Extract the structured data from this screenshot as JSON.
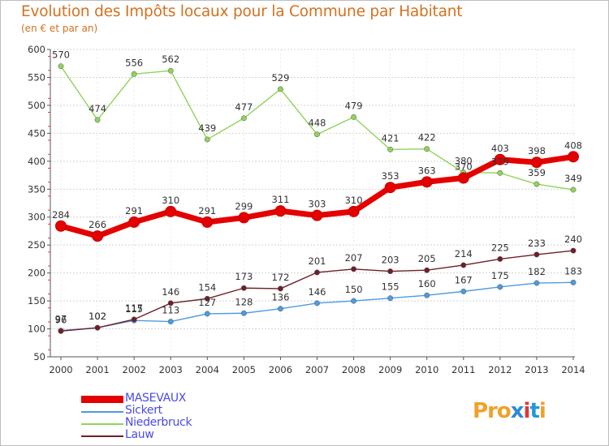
{
  "title": "Evolution des Impôts locaux pour la Commune par Habitant",
  "subtitle": "(en € et par an)",
  "logo": {
    "text": "Proxiti",
    "letters": [
      "P",
      "r",
      "o",
      "x",
      "i",
      "t",
      "i"
    ],
    "letter_colors": [
      "#f2a02a",
      "#f2a02a",
      "#f2a02a",
      "#2c8ad8",
      "#e0373a",
      "#1f9ad6",
      "#f2a02a"
    ]
  },
  "chart_data": {
    "type": "line",
    "title": "Evolution des Impôts locaux pour la Commune par Habitant",
    "ylabel": "(en € et par an)",
    "x": [
      "2000",
      "2001",
      "2002",
      "2003",
      "2004",
      "2005",
      "2006",
      "2007",
      "2008",
      "2009",
      "2010",
      "2011",
      "2012",
      "2013",
      "2014"
    ],
    "ylim": [
      50,
      600
    ],
    "yticks": [
      50,
      100,
      150,
      200,
      250,
      300,
      350,
      400,
      450,
      500,
      550,
      600
    ],
    "grid": "horizontal dashed",
    "legend_position": "bottom-left",
    "series": [
      {
        "name": "MASEVAUX",
        "color": "#e50000",
        "values": [
          284,
          266,
          291,
          310,
          291,
          299,
          311,
          303,
          310,
          353,
          363,
          370,
          403,
          398,
          408
        ],
        "labels": [
          "284",
          "266",
          "291",
          "310",
          "291",
          "299",
          "311",
          "303",
          "310",
          "353",
          "363",
          "370",
          "403",
          "398",
          "408"
        ]
      },
      {
        "name": "Sickert",
        "color": "#4d9be0",
        "values": [
          97,
          102,
          115,
          113,
          127,
          128,
          136,
          146,
          150,
          155,
          160,
          167,
          175,
          182,
          183
        ],
        "labels": [
          "97",
          "102",
          "115",
          "113",
          "127",
          "128",
          "136",
          "146",
          "150",
          "155",
          "160",
          "167",
          "175",
          "182",
          "183"
        ]
      },
      {
        "name": "Niederbruck",
        "color": "#8fd35a",
        "values": [
          570,
          474,
          556,
          562,
          439,
          477,
          529,
          448,
          479,
          421,
          422,
          380,
          379,
          359,
          349
        ],
        "labels": [
          "570",
          "474",
          "556",
          "562",
          "439",
          "477",
          "529",
          "448",
          "479",
          "421",
          "422",
          "380",
          "379",
          "359",
          "349"
        ]
      },
      {
        "name": "Lauw",
        "color": "#6e1f28",
        "values": [
          96,
          102,
          117,
          146,
          154,
          173,
          172,
          201,
          207,
          203,
          205,
          214,
          225,
          233,
          240
        ],
        "labels": [
          "96",
          "102",
          "117",
          "146",
          "154",
          "173",
          "172",
          "201",
          "207",
          "203",
          "205",
          "214",
          "225",
          "233",
          "240"
        ]
      }
    ]
  }
}
